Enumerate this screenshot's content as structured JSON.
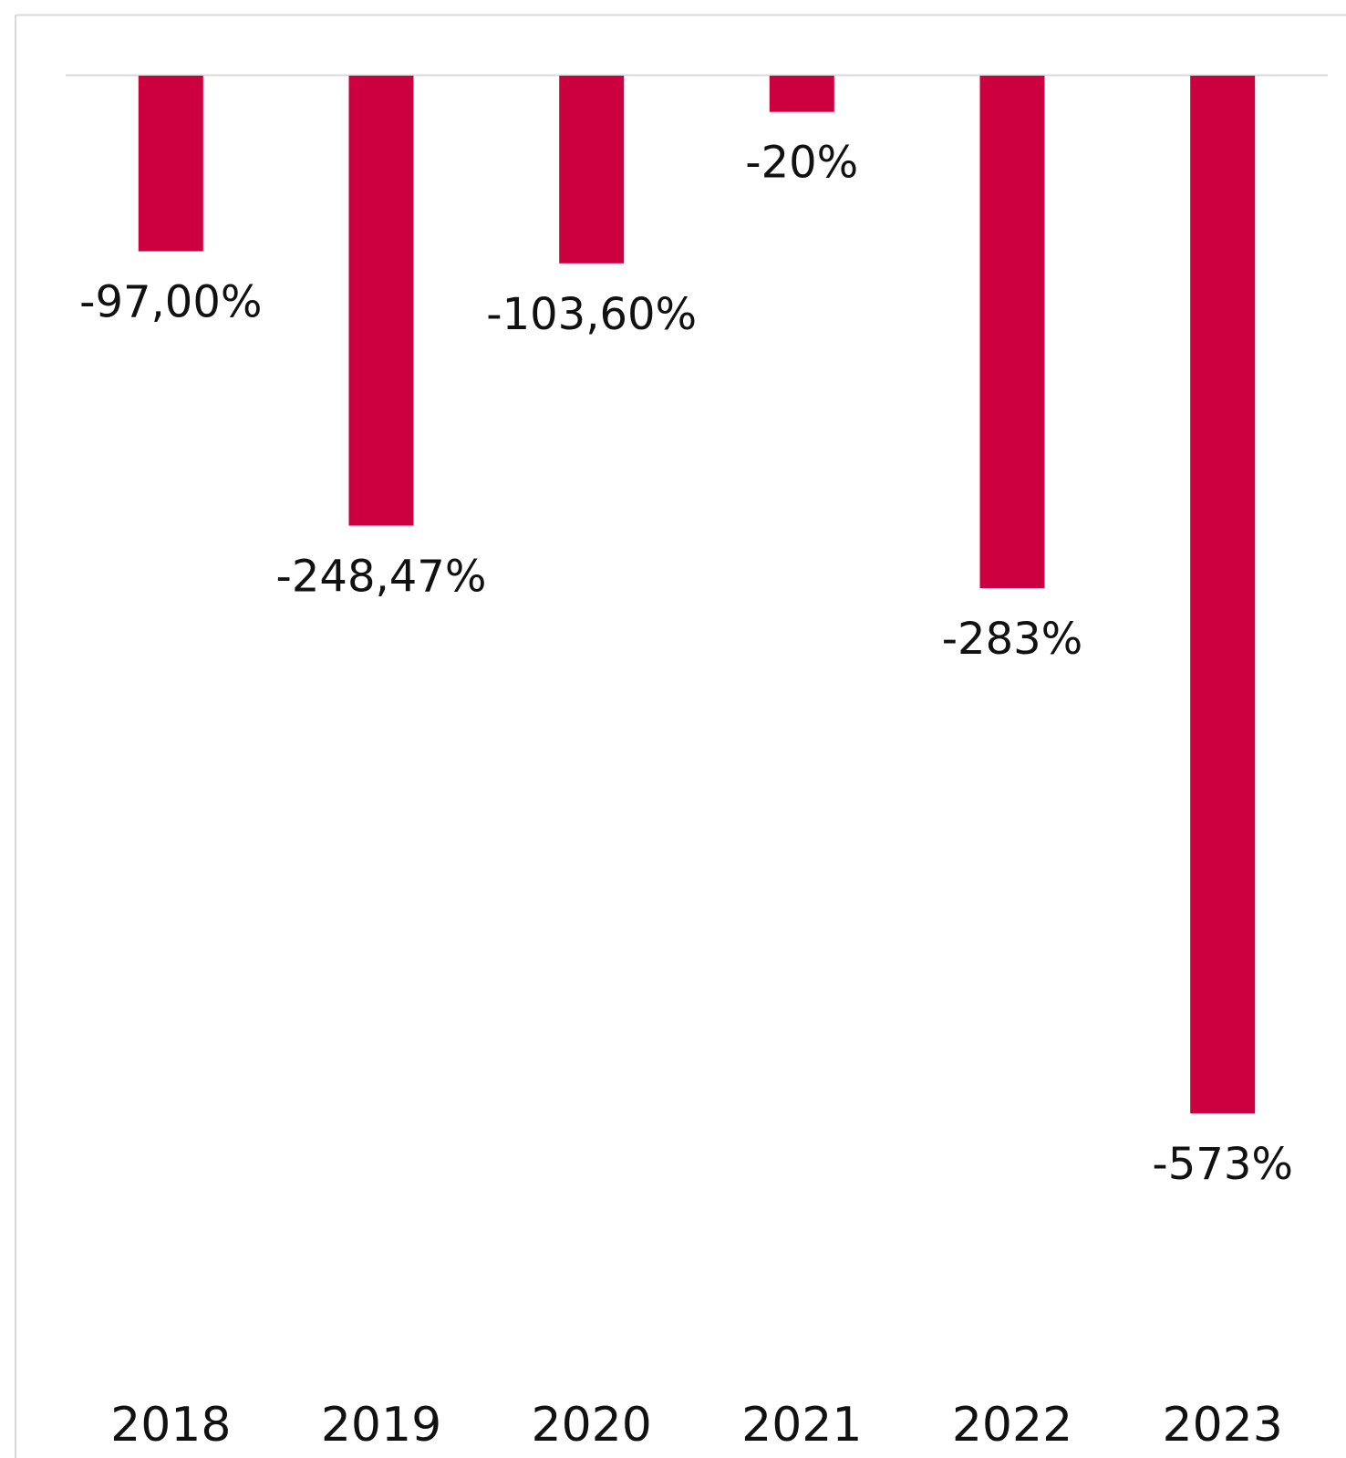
{
  "chart_data": {
    "type": "bar",
    "categories": [
      "2018",
      "2019",
      "2020",
      "2021",
      "2022",
      "2023"
    ],
    "values": [
      -97.0,
      -248.47,
      -103.6,
      -20,
      -283,
      -573
    ],
    "data_labels": [
      "-97,00%",
      "-248,47%",
      "-103,60%",
      "-20%",
      "-283%",
      "-573%"
    ],
    "ylim": [
      -573,
      0
    ],
    "grid": false,
    "legend": "none"
  },
  "colors": {
    "bar": "#CC0040",
    "frame": "#D9D9D9",
    "baseline": "#D9D9D9",
    "text": "#111111"
  }
}
